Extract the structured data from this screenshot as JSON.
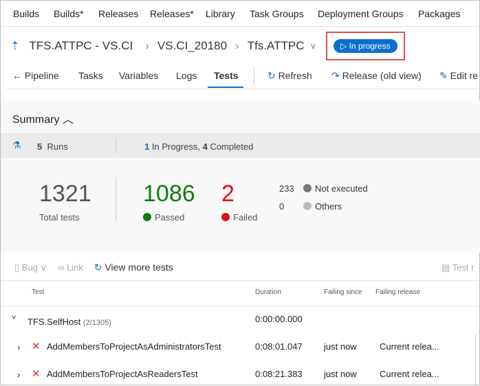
{
  "topnav": [
    "Builds",
    "Builds*",
    "Releases",
    "Releases*",
    "Library",
    "Task Groups",
    "Deployment Groups",
    "Packages"
  ],
  "breadcrumb": {
    "pipeline": "TFS.ATTPC - VS.CI",
    "release": "VS.CI_20180",
    "stage": "Tfs.ATTPC",
    "status": "In progress"
  },
  "tabs": {
    "back": "Pipeline",
    "items": [
      "Tasks",
      "Variables",
      "Logs",
      "Tests"
    ],
    "active": "Tests",
    "refresh": "Refresh",
    "release_old": "Release (old view)",
    "edit": "Edit re"
  },
  "summary": {
    "title": "Summary",
    "runs_count": "5",
    "runs_label": "Runs",
    "in_progress_count": "1",
    "in_progress_label": "In Progress,",
    "completed_count": "4",
    "completed_label": "Completed"
  },
  "stats": {
    "total": "1321",
    "total_label": "Total tests",
    "passed": "1086",
    "passed_label": "Passed",
    "failed": "2",
    "failed_label": "Failed",
    "not_executed": "233",
    "not_executed_label": "Not executed",
    "others": "0",
    "others_label": "Others"
  },
  "colors": {
    "passed": "#107c10",
    "failed": "#e00b1c",
    "accent": "#0a6fd0"
  },
  "toolbar": {
    "bug": "Bug",
    "link": "Link",
    "view_more": "View more tests",
    "test_r": "Test r"
  },
  "table": {
    "headers": [
      "Test",
      "Duration",
      "Failing since",
      "Failing release"
    ],
    "group": {
      "name": "TFS.SelfHost",
      "count": "(2/1305)",
      "duration": "0:00:00.000"
    },
    "rows": [
      {
        "name": "AddMembersToProjectAsAdministratorsTest",
        "duration": "0:08:01.047",
        "since": "just now",
        "release": "Current relea..."
      },
      {
        "name": "AddMembersToProjectAsReadersTest",
        "duration": "0:08:21.383",
        "since": "just now",
        "release": "Current relea..."
      }
    ]
  }
}
